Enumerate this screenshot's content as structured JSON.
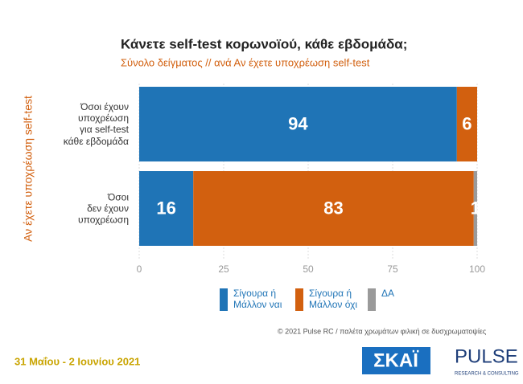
{
  "chart_data": {
    "type": "stacked-barh",
    "title": "Κάνετε self-test κορωνοϊού, κάθε εβδομάδα;",
    "subtitle": "Σύνολο δείγματος // ανά Αν έχετε υποχρέωση self-test",
    "y_label": "Αν έχετε υποχρέωση self-test",
    "categories": [
      "Όσοι έχουν\nυποχρέωση\nγια self-test\nκάθε εβδομάδα",
      "Όσοι\nδεν έχουν\nυποχρέωση"
    ],
    "series": [
      {
        "name": "Σίγουρα ή\nΜάλλον ναι",
        "color": "#1f74b6",
        "values": [
          94,
          16
        ]
      },
      {
        "name": "Σίγουρα ή\nΜάλλον όχι",
        "color": "#d2600f",
        "values": [
          6,
          83
        ]
      },
      {
        "name": "ΔΑ",
        "color": "#9a9a9a",
        "values": [
          0,
          1
        ]
      }
    ],
    "xlim": [
      0,
      100
    ],
    "xticks": [
      0,
      25,
      50,
      75,
      100
    ],
    "grid": true,
    "legend": "bottom",
    "footnote": "© 2021 Pulse RC  /  παλέτα χρωμάτων φιλική σε δυσχρωματοψίες",
    "date": "31 Μαΐου - 2 Ιουνίου 2021",
    "logos": [
      "ΣΚΑΪ",
      "PULSE",
      "RESEARCH & CONSULTING"
    ]
  }
}
